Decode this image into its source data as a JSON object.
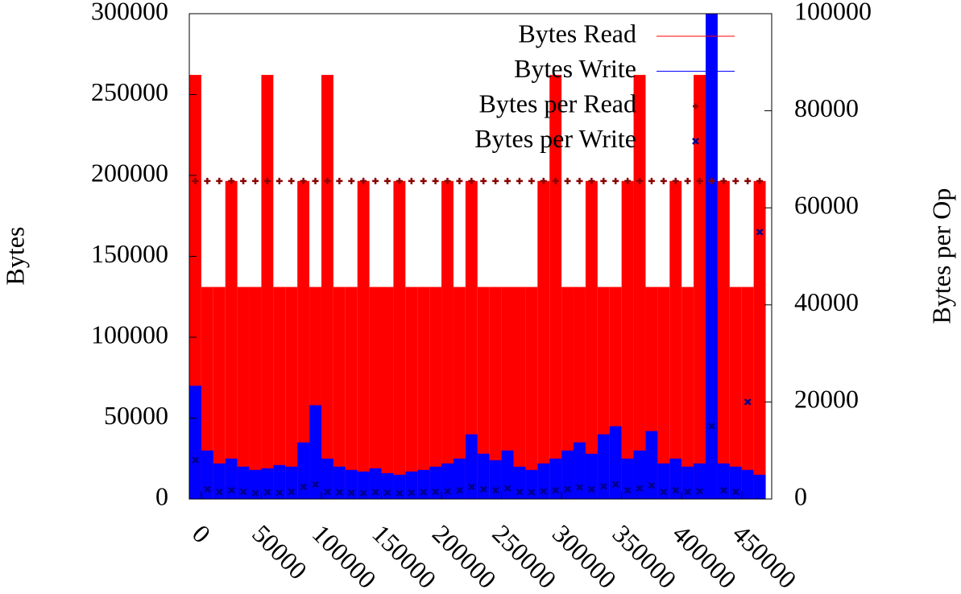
{
  "chart_data": {
    "type": "impulses",
    "ylabel": "Bytes",
    "y2label": "Bytes per Op",
    "x": [
      -5000,
      5000,
      15000,
      25000,
      35000,
      45000,
      55000,
      65000,
      75000,
      85000,
      95000,
      105000,
      115000,
      125000,
      135000,
      145000,
      155000,
      165000,
      175000,
      185000,
      195000,
      205000,
      215000,
      225000,
      235000,
      245000,
      255000,
      265000,
      275000,
      285000,
      295000,
      305000,
      315000,
      325000,
      335000,
      345000,
      355000,
      365000,
      375000,
      385000,
      395000,
      405000,
      415000,
      425000,
      435000,
      445000,
      455000,
      465000
    ],
    "series": [
      {
        "name": "Bytes Read",
        "color": "#ff0000",
        "style": "impulses",
        "values": [
          262144,
          131072,
          131072,
          196608,
          131072,
          131072,
          262144,
          131072,
          131072,
          196608,
          131072,
          262144,
          131072,
          131072,
          196608,
          131072,
          131072,
          196608,
          131072,
          131072,
          131072,
          196608,
          131072,
          196608,
          131072,
          131072,
          131072,
          131072,
          131072,
          196608,
          262144,
          131072,
          131072,
          196608,
          131072,
          131072,
          196608,
          262144,
          131072,
          131072,
          196608,
          131072,
          262144,
          131072,
          196608,
          131072,
          131072,
          196608
        ]
      },
      {
        "name": "Bytes Write",
        "color": "#0000ff",
        "style": "impulses",
        "values": [
          70000,
          30000,
          22000,
          25000,
          20000,
          18000,
          19000,
          21000,
          20000,
          35000,
          58000,
          25000,
          20000,
          18000,
          17000,
          19000,
          16000,
          15000,
          17000,
          18000,
          20000,
          22000,
          25000,
          40000,
          28000,
          24000,
          30000,
          20000,
          18000,
          22000,
          25000,
          30000,
          35000,
          28000,
          40000,
          45000,
          25000,
          30000,
          42000,
          22000,
          25000,
          20000,
          22000,
          300000,
          22000,
          20000,
          18000,
          15000
        ]
      },
      {
        "name": "Bytes per Read",
        "color": "#8b0000",
        "style": "plus",
        "axis": "y2",
        "values": [
          65536,
          65536,
          65536,
          65536,
          65536,
          65536,
          65536,
          65536,
          65536,
          65536,
          65536,
          65536,
          65536,
          65536,
          65536,
          65536,
          65536,
          65536,
          65536,
          65536,
          65536,
          65536,
          65536,
          65536,
          65536,
          65536,
          65536,
          65536,
          65536,
          65536,
          65536,
          65536,
          65536,
          65536,
          65536,
          65536,
          65536,
          65536,
          65536,
          65536,
          65536,
          65536,
          65536,
          65536,
          65536,
          65536,
          65536,
          65536
        ]
      },
      {
        "name": "Bytes per Write",
        "color": "#00008b",
        "style": "cross",
        "axis": "y2",
        "values": [
          8000,
          2000,
          1500,
          1800,
          1500,
          1200,
          1400,
          1300,
          1500,
          2500,
          3000,
          1500,
          1400,
          1300,
          1200,
          1400,
          1300,
          1200,
          1300,
          1400,
          1500,
          1600,
          1800,
          2500,
          2000,
          1800,
          2200,
          1500,
          1400,
          1600,
          1800,
          2000,
          2400,
          2000,
          2600,
          3000,
          1800,
          2200,
          2800,
          1500,
          1800,
          1500,
          1600,
          15000,
          1800,
          1500,
          20000,
          55000
        ]
      }
    ],
    "xlim": [
      -10000,
      475000
    ],
    "xticks": [
      0,
      50000,
      100000,
      150000,
      200000,
      250000,
      300000,
      350000,
      400000,
      450000
    ],
    "ylim": [
      0,
      300000
    ],
    "yticks": [
      0,
      50000,
      100000,
      150000,
      200000,
      250000,
      300000
    ],
    "y2lim": [
      0,
      100000
    ],
    "y2ticks": [
      0,
      20000,
      40000,
      60000,
      80000,
      100000
    ],
    "legend": "top-right"
  }
}
